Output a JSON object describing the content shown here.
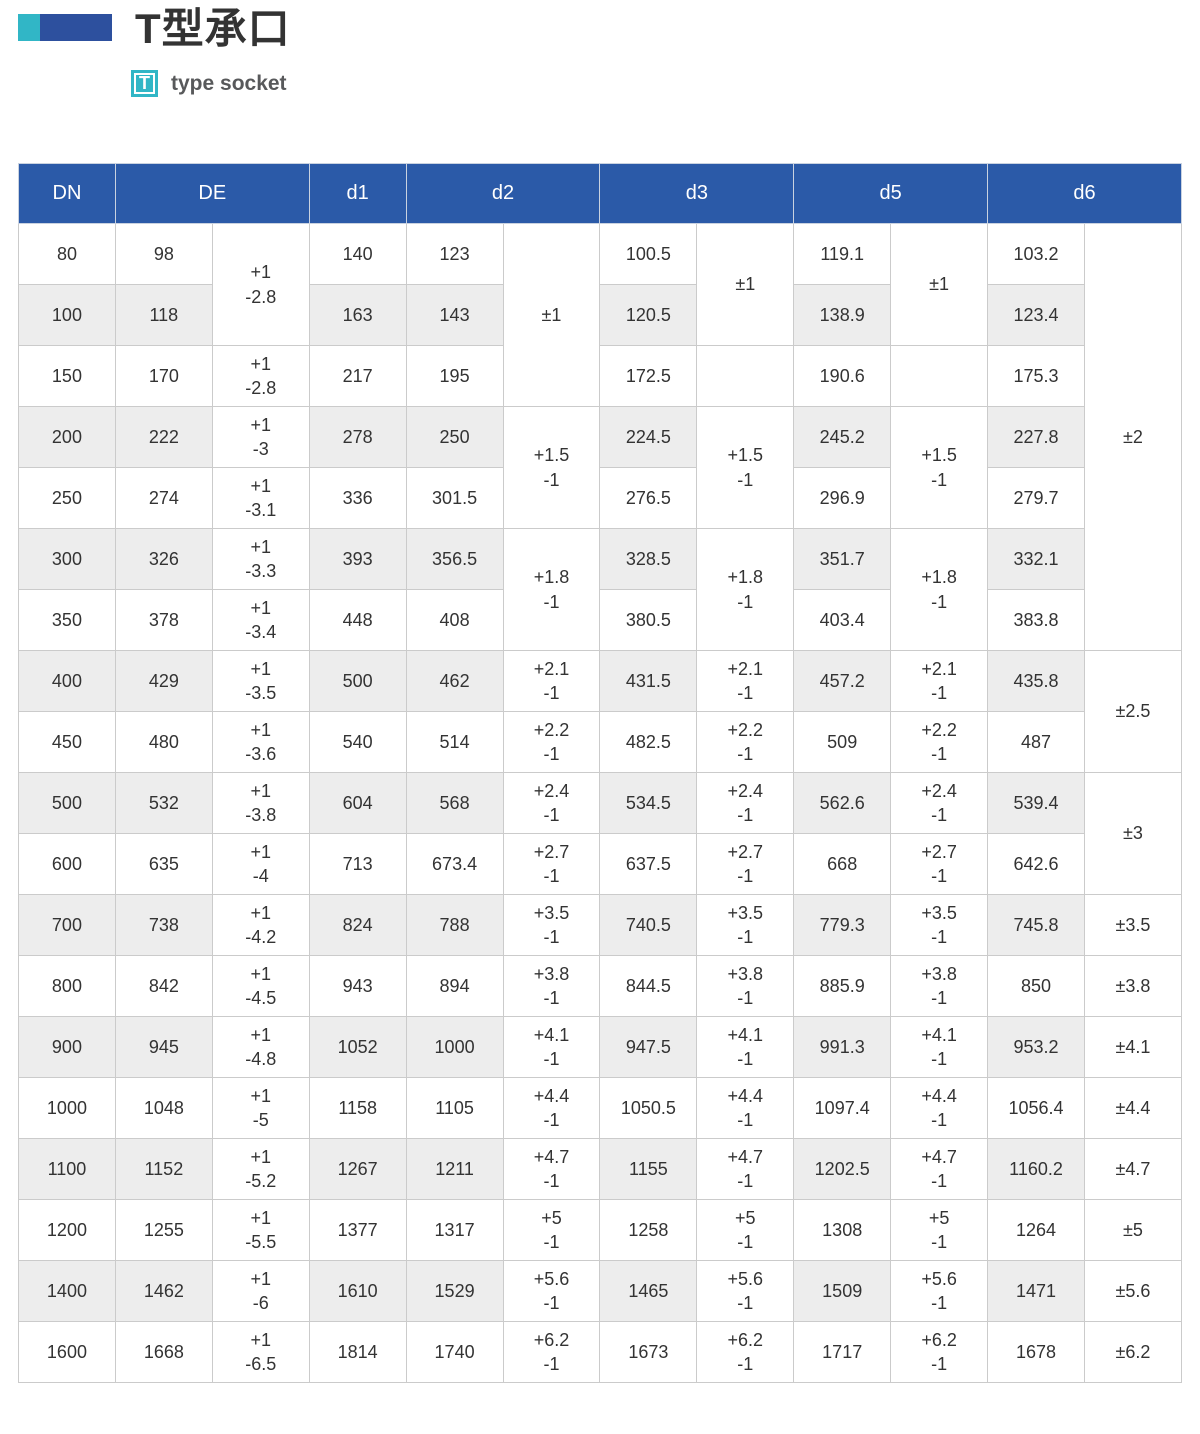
{
  "page": {
    "title": "T型承口",
    "badge": "T",
    "subtitle": "type socket"
  },
  "colors": {
    "header_bg": "#2b5aa8",
    "accent_teal": "#31b6c6",
    "accent_navy": "#2d509e",
    "stripe": "#ededed",
    "grid": "#cbcbcb",
    "text": "#333333"
  },
  "table": {
    "header": [
      {
        "label": "DN",
        "colspan": 1
      },
      {
        "label": "DE",
        "colspan": 2
      },
      {
        "label": "d1",
        "colspan": 1
      },
      {
        "label": "d2",
        "colspan": 2
      },
      {
        "label": "d3",
        "colspan": 2
      },
      {
        "label": "d5",
        "colspan": 2
      },
      {
        "label": "d6",
        "colspan": 2
      }
    ],
    "rows": [
      [
        {
          "v": [
            "80"
          ]
        },
        {
          "v": [
            "98"
          ]
        },
        {
          "v": [
            "+1",
            "-2.8"
          ],
          "t": true,
          "rs": 2
        },
        {
          "v": [
            "140"
          ]
        },
        {
          "v": [
            "123"
          ]
        },
        {
          "v": [
            "±1"
          ],
          "t": true,
          "rs": 3
        },
        {
          "v": [
            "100.5"
          ]
        },
        {
          "v": [
            "±1"
          ],
          "t": true,
          "rs": 2
        },
        {
          "v": [
            "119.1"
          ]
        },
        {
          "v": [
            "±1"
          ],
          "t": true,
          "rs": 2
        },
        {
          "v": [
            "103.2"
          ]
        },
        {
          "v": [
            "±2"
          ],
          "t": true,
          "rs": 7
        }
      ],
      [
        {
          "v": [
            "100"
          ]
        },
        {
          "v": [
            "118"
          ]
        },
        {
          "v": [
            "163"
          ]
        },
        {
          "v": [
            "143"
          ]
        },
        {
          "v": [
            "120.5"
          ]
        },
        {
          "v": [
            "138.9"
          ]
        },
        {
          "v": [
            "123.4"
          ]
        }
      ],
      [
        {
          "v": [
            "150"
          ]
        },
        {
          "v": [
            "170"
          ]
        },
        {
          "v": [
            "+1",
            "-2.8"
          ],
          "t": true
        },
        {
          "v": [
            "217"
          ]
        },
        {
          "v": [
            "195"
          ]
        },
        {
          "v": [
            "172.5"
          ]
        },
        {
          "v": [],
          "t": true
        },
        {
          "v": [
            "190.6"
          ]
        },
        {
          "v": [],
          "t": true
        },
        {
          "v": [
            "175.3"
          ]
        }
      ],
      [
        {
          "v": [
            "200"
          ]
        },
        {
          "v": [
            "222"
          ]
        },
        {
          "v": [
            "+1",
            "-3"
          ],
          "t": true
        },
        {
          "v": [
            "278"
          ]
        },
        {
          "v": [
            "250"
          ]
        },
        {
          "v": [
            "+1.5",
            "-1"
          ],
          "t": true,
          "rs": 2
        },
        {
          "v": [
            "224.5"
          ]
        },
        {
          "v": [
            "+1.5",
            "-1"
          ],
          "t": true,
          "rs": 2
        },
        {
          "v": [
            "245.2"
          ]
        },
        {
          "v": [
            "+1.5",
            "-1"
          ],
          "t": true,
          "rs": 2
        },
        {
          "v": [
            "227.8"
          ]
        }
      ],
      [
        {
          "v": [
            "250"
          ]
        },
        {
          "v": [
            "274"
          ]
        },
        {
          "v": [
            "+1",
            "-3.1"
          ],
          "t": true
        },
        {
          "v": [
            "336"
          ]
        },
        {
          "v": [
            "301.5"
          ]
        },
        {
          "v": [
            "276.5"
          ]
        },
        {
          "v": [
            "296.9"
          ]
        },
        {
          "v": [
            "279.7"
          ]
        }
      ],
      [
        {
          "v": [
            "300"
          ]
        },
        {
          "v": [
            "326"
          ]
        },
        {
          "v": [
            "+1",
            "-3.3"
          ],
          "t": true
        },
        {
          "v": [
            "393"
          ]
        },
        {
          "v": [
            "356.5"
          ]
        },
        {
          "v": [
            "+1.8",
            "-1"
          ],
          "t": true,
          "rs": 2
        },
        {
          "v": [
            "328.5"
          ]
        },
        {
          "v": [
            "+1.8",
            "-1"
          ],
          "t": true,
          "rs": 2
        },
        {
          "v": [
            "351.7"
          ]
        },
        {
          "v": [
            "+1.8",
            "-1"
          ],
          "t": true,
          "rs": 2
        },
        {
          "v": [
            "332.1"
          ]
        }
      ],
      [
        {
          "v": [
            "350"
          ]
        },
        {
          "v": [
            "378"
          ]
        },
        {
          "v": [
            "+1",
            "-3.4"
          ],
          "t": true
        },
        {
          "v": [
            "448"
          ]
        },
        {
          "v": [
            "408"
          ]
        },
        {
          "v": [
            "380.5"
          ]
        },
        {
          "v": [
            "403.4"
          ]
        },
        {
          "v": [
            "383.8"
          ]
        }
      ],
      [
        {
          "v": [
            "400"
          ]
        },
        {
          "v": [
            "429"
          ]
        },
        {
          "v": [
            "+1",
            "-3.5"
          ],
          "t": true
        },
        {
          "v": [
            "500"
          ]
        },
        {
          "v": [
            "462"
          ]
        },
        {
          "v": [
            "+2.1",
            "-1"
          ],
          "t": true
        },
        {
          "v": [
            "431.5"
          ]
        },
        {
          "v": [
            "+2.1",
            "-1"
          ],
          "t": true
        },
        {
          "v": [
            "457.2"
          ]
        },
        {
          "v": [
            "+2.1",
            "-1"
          ],
          "t": true
        },
        {
          "v": [
            "435.8"
          ]
        },
        {
          "v": [
            "±2.5"
          ],
          "t": true,
          "rs": 2
        }
      ],
      [
        {
          "v": [
            "450"
          ]
        },
        {
          "v": [
            "480"
          ]
        },
        {
          "v": [
            "+1",
            "-3.6"
          ],
          "t": true
        },
        {
          "v": [
            "540"
          ]
        },
        {
          "v": [
            "514"
          ]
        },
        {
          "v": [
            "+2.2",
            "-1"
          ],
          "t": true
        },
        {
          "v": [
            "482.5"
          ]
        },
        {
          "v": [
            "+2.2",
            "-1"
          ],
          "t": true
        },
        {
          "v": [
            "509"
          ]
        },
        {
          "v": [
            "+2.2",
            "-1"
          ],
          "t": true
        },
        {
          "v": [
            "487"
          ]
        }
      ],
      [
        {
          "v": [
            "500"
          ]
        },
        {
          "v": [
            "532"
          ]
        },
        {
          "v": [
            "+1",
            "-3.8"
          ],
          "t": true
        },
        {
          "v": [
            "604"
          ]
        },
        {
          "v": [
            "568"
          ]
        },
        {
          "v": [
            "+2.4",
            "-1"
          ],
          "t": true
        },
        {
          "v": [
            "534.5"
          ]
        },
        {
          "v": [
            "+2.4",
            "-1"
          ],
          "t": true
        },
        {
          "v": [
            "562.6"
          ]
        },
        {
          "v": [
            "+2.4",
            "-1"
          ],
          "t": true
        },
        {
          "v": [
            "539.4"
          ]
        },
        {
          "v": [
            "±3"
          ],
          "t": true,
          "rs": 2
        }
      ],
      [
        {
          "v": [
            "600"
          ]
        },
        {
          "v": [
            "635"
          ]
        },
        {
          "v": [
            "+1",
            "-4"
          ],
          "t": true
        },
        {
          "v": [
            "713"
          ]
        },
        {
          "v": [
            "673.4"
          ]
        },
        {
          "v": [
            "+2.7",
            "-1"
          ],
          "t": true
        },
        {
          "v": [
            "637.5"
          ]
        },
        {
          "v": [
            "+2.7",
            "-1"
          ],
          "t": true
        },
        {
          "v": [
            "668"
          ]
        },
        {
          "v": [
            "+2.7",
            "-1"
          ],
          "t": true
        },
        {
          "v": [
            "642.6"
          ]
        }
      ],
      [
        {
          "v": [
            "700"
          ]
        },
        {
          "v": [
            "738"
          ]
        },
        {
          "v": [
            "+1",
            "-4.2"
          ],
          "t": true
        },
        {
          "v": [
            "824"
          ]
        },
        {
          "v": [
            "788"
          ]
        },
        {
          "v": [
            "+3.5",
            "-1"
          ],
          "t": true
        },
        {
          "v": [
            "740.5"
          ]
        },
        {
          "v": [
            "+3.5",
            "-1"
          ],
          "t": true
        },
        {
          "v": [
            "779.3"
          ]
        },
        {
          "v": [
            "+3.5",
            "-1"
          ],
          "t": true
        },
        {
          "v": [
            "745.8"
          ]
        },
        {
          "v": [
            "±3.5"
          ],
          "t": true
        }
      ],
      [
        {
          "v": [
            "800"
          ]
        },
        {
          "v": [
            "842"
          ]
        },
        {
          "v": [
            "+1",
            "-4.5"
          ],
          "t": true
        },
        {
          "v": [
            "943"
          ]
        },
        {
          "v": [
            "894"
          ]
        },
        {
          "v": [
            "+3.8",
            "-1"
          ],
          "t": true
        },
        {
          "v": [
            "844.5"
          ]
        },
        {
          "v": [
            "+3.8",
            "-1"
          ],
          "t": true
        },
        {
          "v": [
            "885.9"
          ]
        },
        {
          "v": [
            "+3.8",
            "-1"
          ],
          "t": true
        },
        {
          "v": [
            "850"
          ]
        },
        {
          "v": [
            "±3.8"
          ],
          "t": true
        }
      ],
      [
        {
          "v": [
            "900"
          ]
        },
        {
          "v": [
            "945"
          ]
        },
        {
          "v": [
            "+1",
            "-4.8"
          ],
          "t": true
        },
        {
          "v": [
            "1052"
          ]
        },
        {
          "v": [
            "1000"
          ]
        },
        {
          "v": [
            "+4.1",
            "-1"
          ],
          "t": true
        },
        {
          "v": [
            "947.5"
          ]
        },
        {
          "v": [
            "+4.1",
            "-1"
          ],
          "t": true
        },
        {
          "v": [
            "991.3"
          ]
        },
        {
          "v": [
            "+4.1",
            "-1"
          ],
          "t": true
        },
        {
          "v": [
            "953.2"
          ]
        },
        {
          "v": [
            "±4.1"
          ],
          "t": true
        }
      ],
      [
        {
          "v": [
            "1000"
          ]
        },
        {
          "v": [
            "1048"
          ]
        },
        {
          "v": [
            "+1",
            "-5"
          ],
          "t": true
        },
        {
          "v": [
            "1158"
          ]
        },
        {
          "v": [
            "1105"
          ]
        },
        {
          "v": [
            "+4.4",
            "-1"
          ],
          "t": true
        },
        {
          "v": [
            "1050.5"
          ]
        },
        {
          "v": [
            "+4.4",
            "-1"
          ],
          "t": true
        },
        {
          "v": [
            "1097.4"
          ]
        },
        {
          "v": [
            "+4.4",
            "-1"
          ],
          "t": true
        },
        {
          "v": [
            "1056.4"
          ]
        },
        {
          "v": [
            "±4.4"
          ],
          "t": true
        }
      ],
      [
        {
          "v": [
            "1100"
          ]
        },
        {
          "v": [
            "1152"
          ]
        },
        {
          "v": [
            "+1",
            "-5.2"
          ],
          "t": true
        },
        {
          "v": [
            "1267"
          ]
        },
        {
          "v": [
            "1211"
          ]
        },
        {
          "v": [
            "+4.7",
            "-1"
          ],
          "t": true
        },
        {
          "v": [
            "1155"
          ]
        },
        {
          "v": [
            "+4.7",
            "-1"
          ],
          "t": true
        },
        {
          "v": [
            "1202.5"
          ]
        },
        {
          "v": [
            "+4.7",
            "-1"
          ],
          "t": true
        },
        {
          "v": [
            "1160.2"
          ]
        },
        {
          "v": [
            "±4.7"
          ],
          "t": true
        }
      ],
      [
        {
          "v": [
            "1200"
          ]
        },
        {
          "v": [
            "1255"
          ]
        },
        {
          "v": [
            "+1",
            "-5.5"
          ],
          "t": true
        },
        {
          "v": [
            "1377"
          ]
        },
        {
          "v": [
            "1317"
          ]
        },
        {
          "v": [
            "+5",
            "-1"
          ],
          "t": true
        },
        {
          "v": [
            "1258"
          ]
        },
        {
          "v": [
            "+5",
            "-1"
          ],
          "t": true
        },
        {
          "v": [
            "1308"
          ]
        },
        {
          "v": [
            "+5",
            "-1"
          ],
          "t": true
        },
        {
          "v": [
            "1264"
          ]
        },
        {
          "v": [
            "±5"
          ],
          "t": true
        }
      ],
      [
        {
          "v": [
            "1400"
          ]
        },
        {
          "v": [
            "1462"
          ]
        },
        {
          "v": [
            "+1",
            "-6"
          ],
          "t": true
        },
        {
          "v": [
            "1610"
          ]
        },
        {
          "v": [
            "1529"
          ]
        },
        {
          "v": [
            "+5.6",
            "-1"
          ],
          "t": true
        },
        {
          "v": [
            "1465"
          ]
        },
        {
          "v": [
            "+5.6",
            "-1"
          ],
          "t": true
        },
        {
          "v": [
            "1509"
          ]
        },
        {
          "v": [
            "+5.6",
            "-1"
          ],
          "t": true
        },
        {
          "v": [
            "1471"
          ]
        },
        {
          "v": [
            "±5.6"
          ],
          "t": true
        }
      ],
      [
        {
          "v": [
            "1600"
          ]
        },
        {
          "v": [
            "1668"
          ]
        },
        {
          "v": [
            "+1",
            "-6.5"
          ],
          "t": true
        },
        {
          "v": [
            "1814"
          ]
        },
        {
          "v": [
            "1740"
          ]
        },
        {
          "v": [
            "+6.2",
            "-1"
          ],
          "t": true
        },
        {
          "v": [
            "1673"
          ]
        },
        {
          "v": [
            "+6.2",
            "-1"
          ],
          "t": true
        },
        {
          "v": [
            "1717"
          ]
        },
        {
          "v": [
            "+6.2",
            "-1"
          ],
          "t": true
        },
        {
          "v": [
            "1678"
          ]
        },
        {
          "v": [
            "±6.2"
          ],
          "t": true
        }
      ]
    ]
  }
}
